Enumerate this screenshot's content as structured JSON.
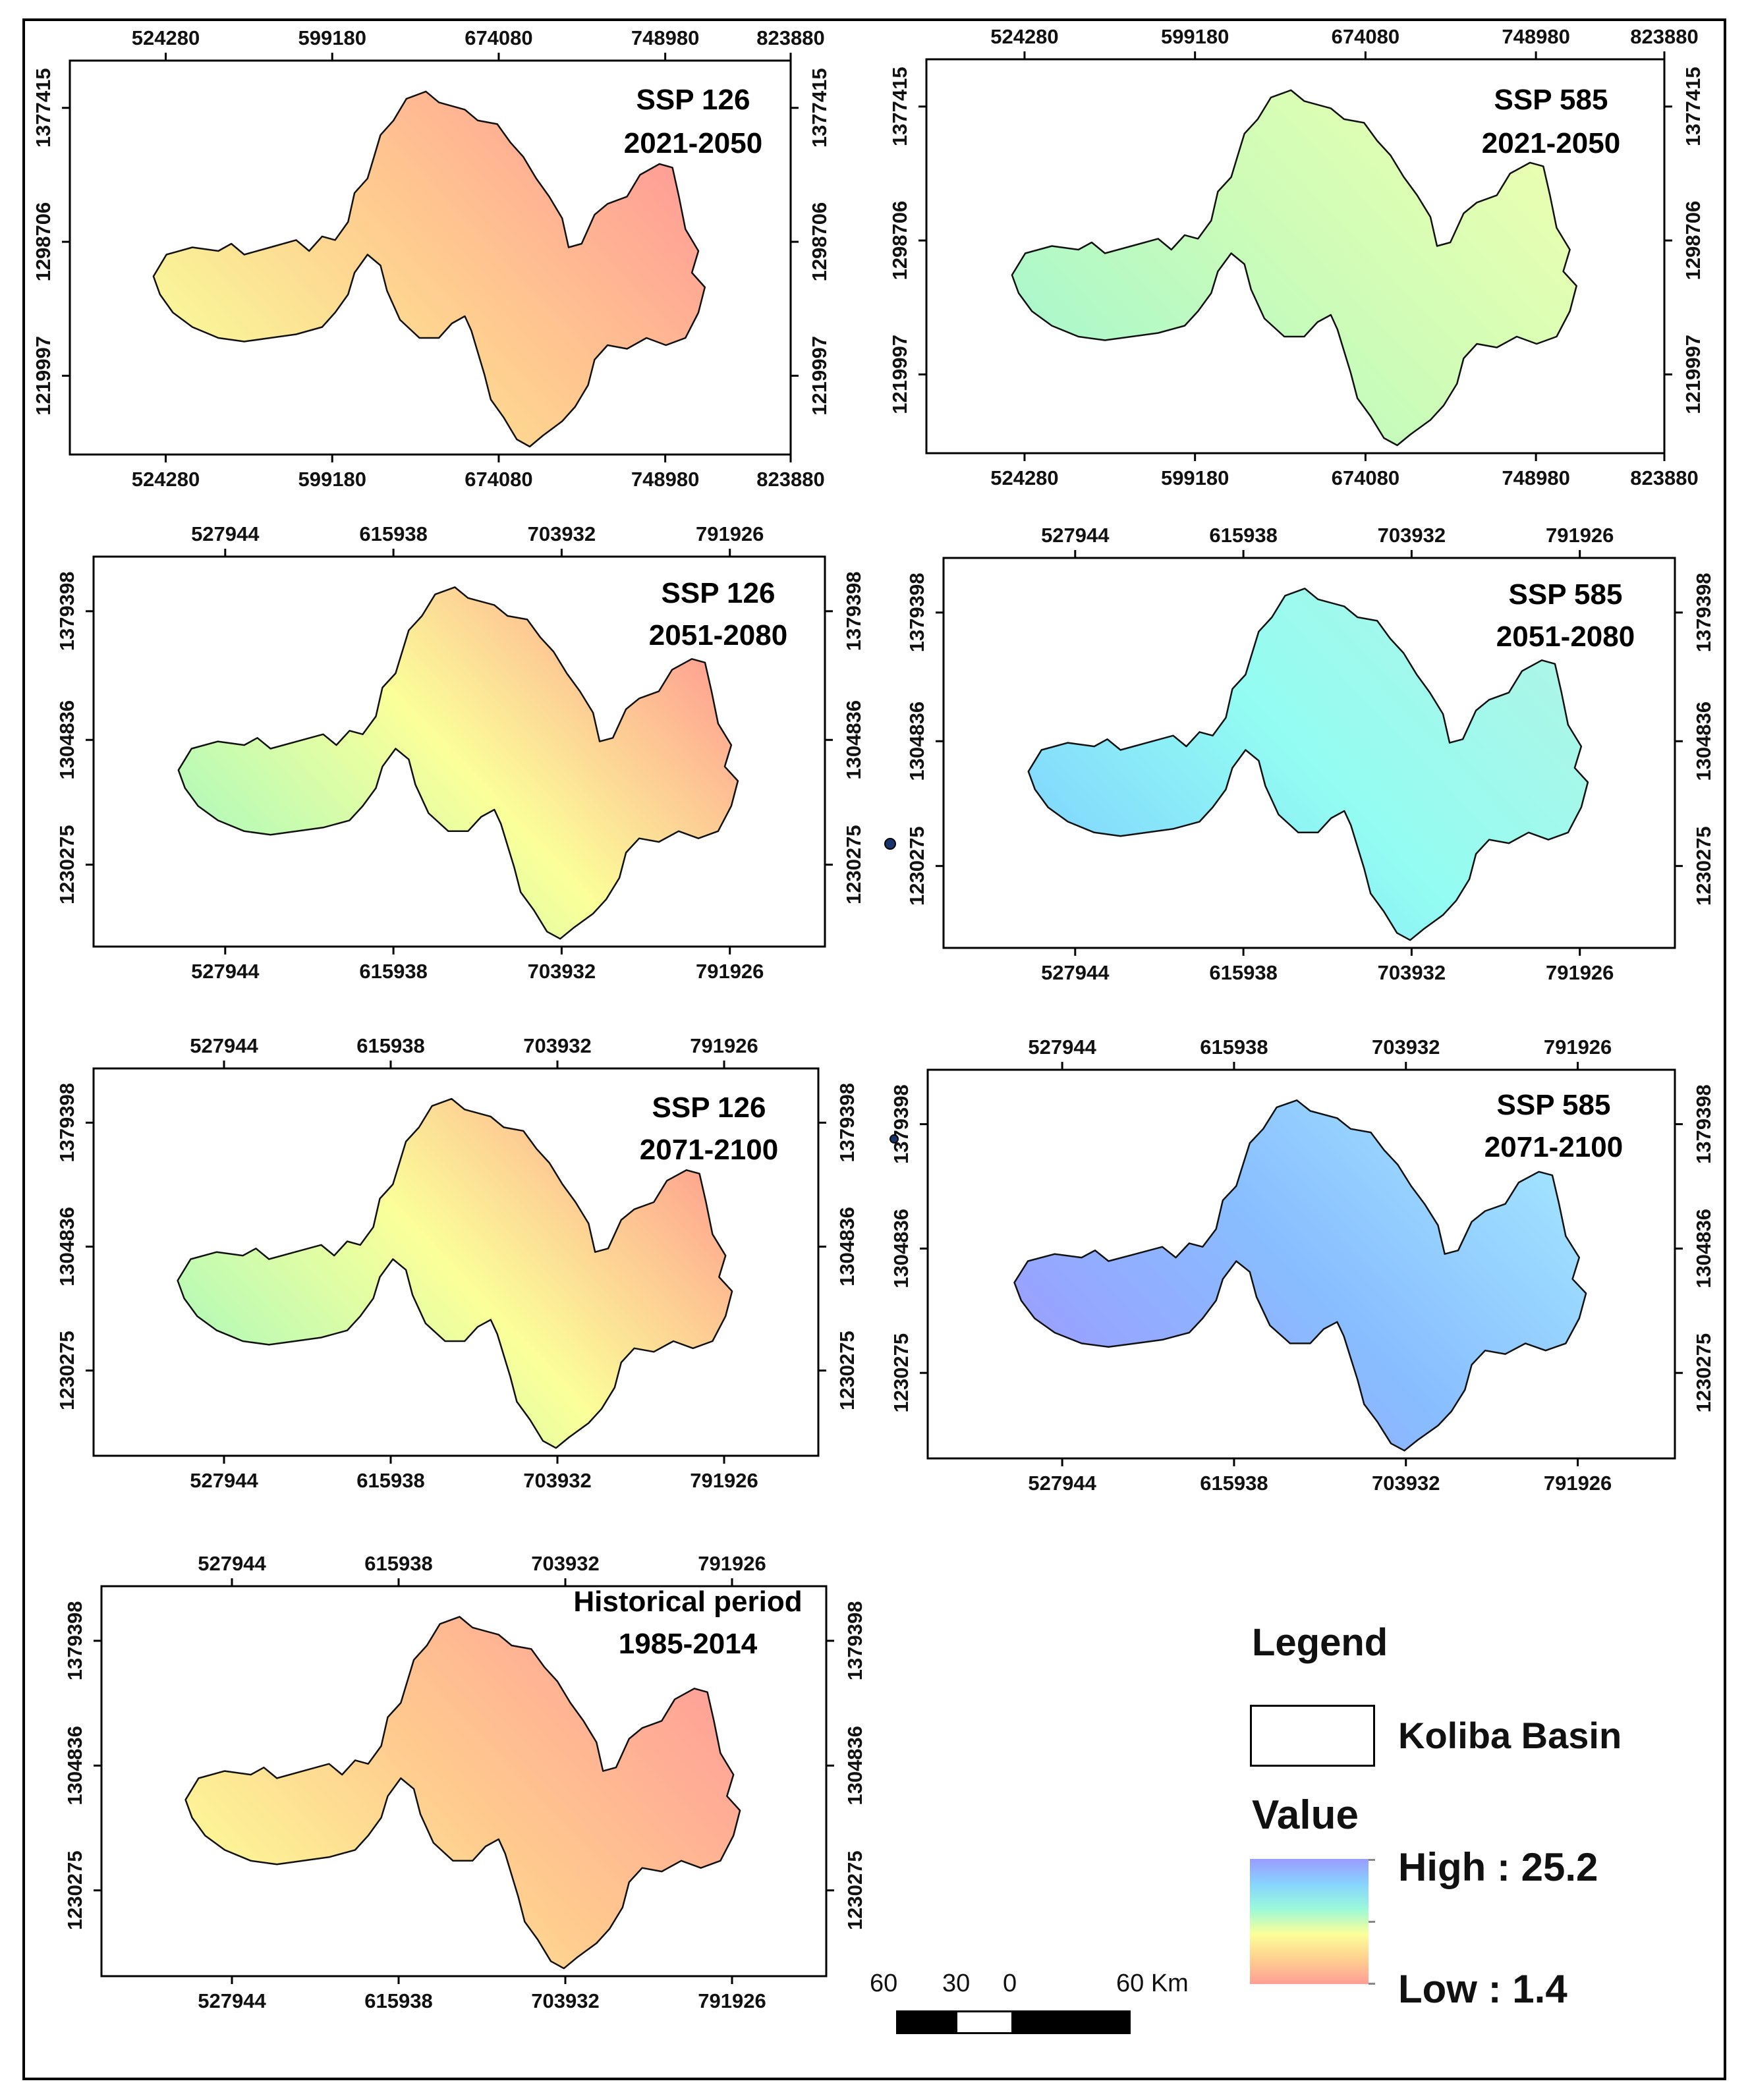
{
  "panels": [
    {
      "id": "ssp126-2021-2050",
      "title_line1": "SSP 126",
      "title_line2": "2021-2050",
      "x_ticks": [
        "524280",
        "599180",
        "674080",
        "748980",
        "823880"
      ],
      "y_ticks": [
        "1377415",
        "1298706",
        "1219997"
      ],
      "colors": [
        "#f8ff9b",
        "#ffcc8f",
        "#ff9a97"
      ]
    },
    {
      "id": "ssp585-2021-2050",
      "title_line1": "SSP 585",
      "title_line2": "2021-2050",
      "x_ticks": [
        "524280",
        "599180",
        "674080",
        "748980",
        "823880"
      ],
      "y_ticks": [
        "1377415",
        "1298706",
        "1219997"
      ],
      "colors": [
        "#a4f7cf",
        "#ccfcb8",
        "#ecffb0"
      ]
    },
    {
      "id": "ssp126-2051-2080",
      "title_line1": "SSP 126",
      "title_line2": "2051-2080",
      "x_ticks": [
        "527944",
        "615938",
        "703932",
        "791926"
      ],
      "y_ticks": [
        "1379398",
        "1304836",
        "1230275"
      ],
      "colors": [
        "#a6f9bf",
        "#fbff99",
        "#ff9a90"
      ]
    },
    {
      "id": "ssp585-2051-2080",
      "title_line1": "SSP 585",
      "title_line2": "2051-2080",
      "x_ticks": [
        "527944",
        "615938",
        "703932",
        "791926"
      ],
      "y_ticks": [
        "1379398",
        "1304836",
        "1230275"
      ],
      "colors": [
        "#7fd2ff",
        "#93fcf2",
        "#aef5e6"
      ]
    },
    {
      "id": "ssp126-2071-2100",
      "title_line1": "SSP 126",
      "title_line2": "2071-2100",
      "x_ticks": [
        "527944",
        "615938",
        "703932",
        "791926"
      ],
      "y_ticks": [
        "1379398",
        "1304836",
        "1230275"
      ],
      "colors": [
        "#a9f9bc",
        "#fbff99",
        "#ff9e8e"
      ]
    },
    {
      "id": "ssp585-2071-2100",
      "title_line1": "SSP 585",
      "title_line2": "2071-2100",
      "x_ticks": [
        "527944",
        "615938",
        "703932",
        "791926"
      ],
      "y_ticks": [
        "1379398",
        "1304836",
        "1230275"
      ],
      "colors": [
        "#9d9bff",
        "#88bdff",
        "#a3e5ff"
      ]
    },
    {
      "id": "historical-1985-2014",
      "title_line1": "Historical period",
      "title_line2": "1985-2014",
      "x_ticks": [
        "527944",
        "615938",
        "703932",
        "791926"
      ],
      "y_ticks": [
        "1379398",
        "1304836",
        "1230275"
      ],
      "colors": [
        "#fcff99",
        "#ffc98e",
        "#ff9e99"
      ]
    }
  ],
  "legend": {
    "title": "Legend",
    "basin_label": "Koliba Basin",
    "value_title": "Value",
    "high_label": "High : 25.2",
    "low_label": "Low : 1.4",
    "ramp_colors": [
      "#9a9cff",
      "#87d3ff",
      "#9bf9d9",
      "#fbff99",
      "#ffd08f",
      "#ff9e96"
    ]
  },
  "scale_bar": {
    "labels": [
      "60",
      "30",
      "0",
      "60 Km"
    ]
  }
}
